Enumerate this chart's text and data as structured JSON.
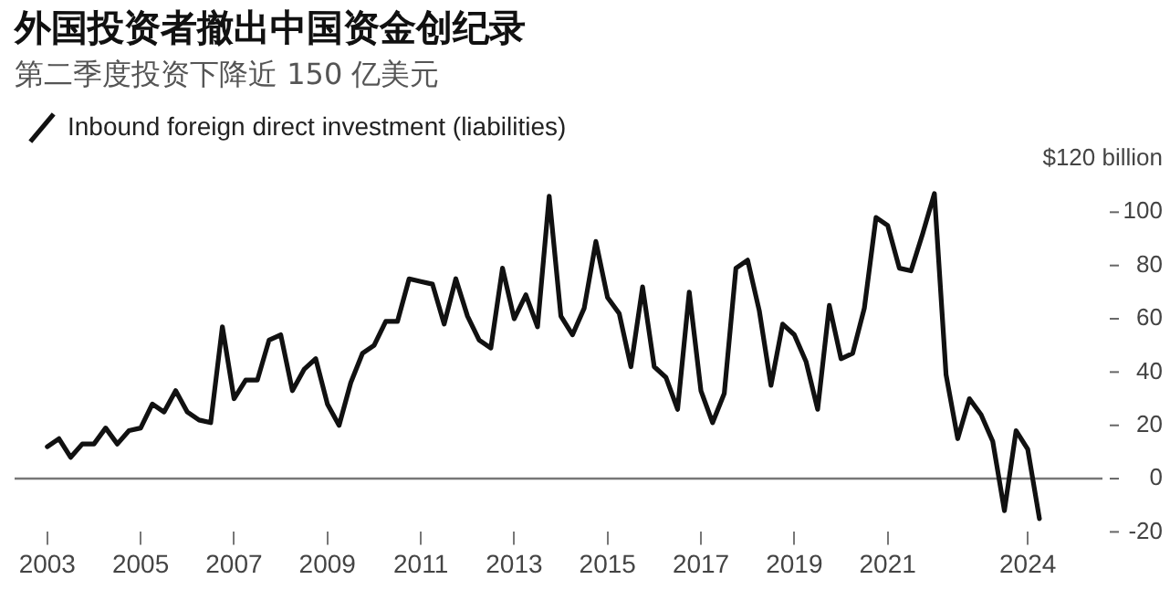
{
  "chart_data": {
    "type": "line",
    "title": "外国投资者撤出中国资金创纪录",
    "subtitle": "第二季度投资下降近 150 亿美元",
    "x": [
      2003,
      2003.25,
      2003.5,
      2003.75,
      2004,
      2004.25,
      2004.5,
      2004.75,
      2005,
      2005.25,
      2005.5,
      2005.75,
      2006,
      2006.25,
      2006.5,
      2006.75,
      2007,
      2007.25,
      2007.5,
      2007.75,
      2008,
      2008.25,
      2008.5,
      2008.75,
      2009,
      2009.25,
      2009.5,
      2009.75,
      2010,
      2010.25,
      2010.5,
      2010.75,
      2011,
      2011.25,
      2011.5,
      2011.75,
      2012,
      2012.25,
      2012.5,
      2012.75,
      2013,
      2013.25,
      2013.5,
      2013.75,
      2014,
      2014.25,
      2014.5,
      2014.75,
      2015,
      2015.25,
      2015.5,
      2015.75,
      2016,
      2016.25,
      2016.5,
      2016.75,
      2017,
      2017.25,
      2017.5,
      2017.75,
      2018,
      2018.25,
      2018.5,
      2018.75,
      2019,
      2019.25,
      2019.5,
      2019.75,
      2020,
      2020.25,
      2020.5,
      2020.75,
      2021,
      2021.25,
      2021.5,
      2021.75,
      2022,
      2022.25,
      2022.5,
      2022.75,
      2023,
      2023.25,
      2023.5,
      2023.75,
      2024,
      2024.25
    ],
    "series": [
      {
        "name": "Inbound foreign direct investment (liabilities)",
        "color": "#111111",
        "values": [
          12,
          15,
          8,
          13,
          13,
          19,
          13,
          18,
          19,
          28,
          25,
          33,
          25,
          22,
          21,
          57,
          30,
          37,
          37,
          52,
          54,
          33,
          41,
          45,
          28,
          20,
          36,
          47,
          50,
          59,
          59,
          75,
          74,
          73,
          58,
          75,
          61,
          52,
          49,
          79,
          60,
          69,
          57,
          106,
          61,
          54,
          64,
          89,
          68,
          62,
          42,
          72,
          42,
          38,
          26,
          70,
          33,
          21,
          32,
          79,
          82,
          63,
          35,
          58,
          54,
          44,
          26,
          65,
          45,
          47,
          64,
          98,
          95,
          79,
          78,
          92,
          107,
          39,
          15,
          30,
          24,
          14,
          -12,
          18,
          11,
          -15
        ]
      }
    ],
    "xlim": [
      2002.3,
      2025.6
    ],
    "xticks": [
      2003,
      2005,
      2007,
      2009,
      2011,
      2013,
      2015,
      2017,
      2019,
      2021,
      2024
    ],
    "ylim": [
      -20,
      120
    ],
    "yticks": [
      -20,
      0,
      20,
      40,
      60,
      80,
      100,
      {
        "value": 120,
        "label": "$120 billion"
      }
    ],
    "ref_lines": [
      {
        "axis": "y",
        "value": 0,
        "color": "#777777"
      }
    ],
    "grid": false,
    "legend": "top left",
    "marker": "none",
    "line_style": "solid"
  }
}
